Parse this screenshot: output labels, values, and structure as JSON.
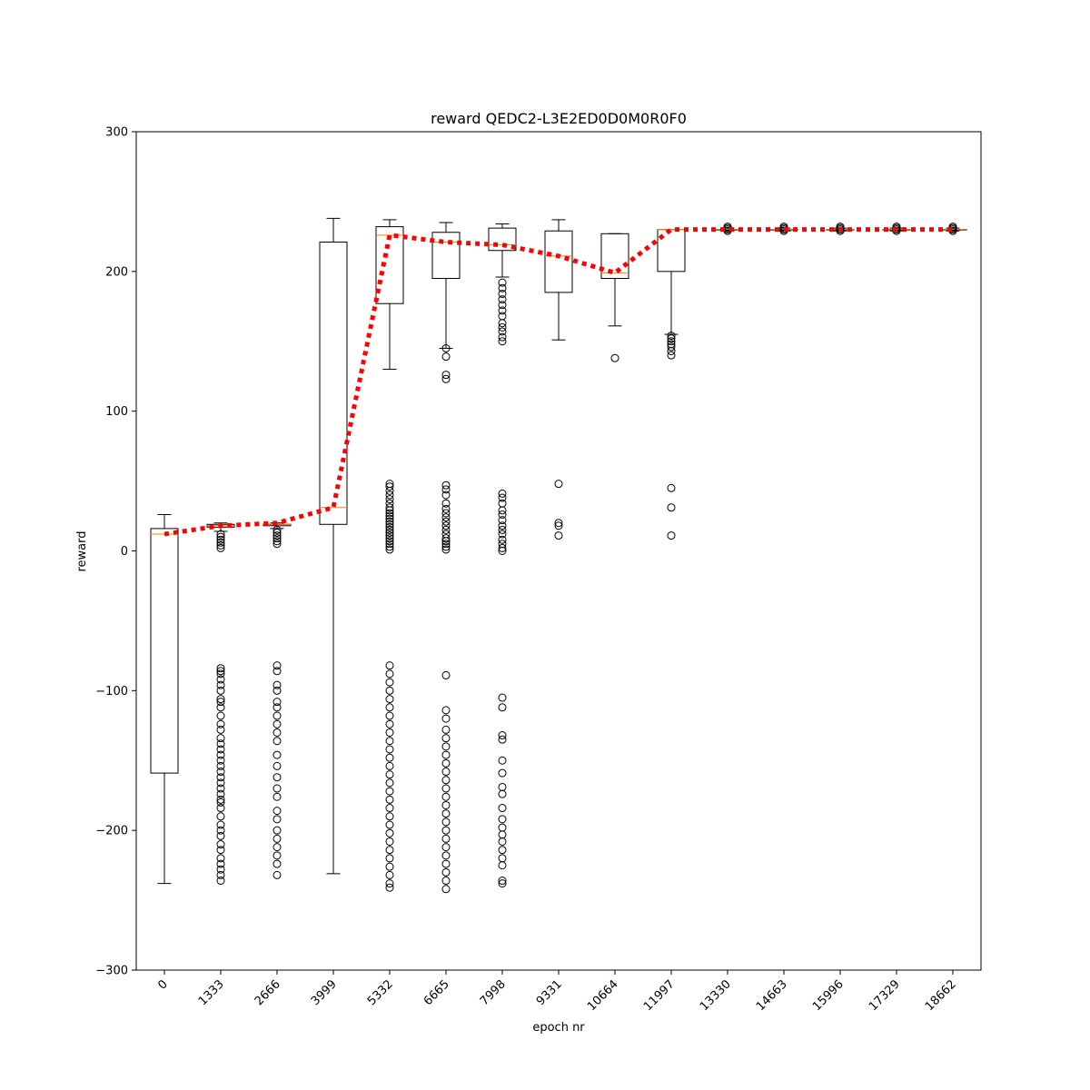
{
  "chart_data": {
    "type": "box",
    "title": "reward QEDC2-L3E2ED0D0M0R0F0",
    "xlabel": "epoch nr",
    "ylabel": "reward",
    "ylim": [
      -300,
      300
    ],
    "yticks": [
      -300,
      -200,
      -100,
      0,
      100,
      200,
      300
    ],
    "categories": [
      "0",
      "1333",
      "2666",
      "3999",
      "5332",
      "6665",
      "7998",
      "9331",
      "10664",
      "11997",
      "13330",
      "14663",
      "15996",
      "17329",
      "18662"
    ],
    "boxes": [
      {
        "whisker_low": -238,
        "q1": -159,
        "median": 12,
        "q3": 16,
        "whisker_high": 26,
        "outliers": []
      },
      {
        "whisker_low": 14,
        "q1": 17,
        "median": 18,
        "q3": 19,
        "whisker_high": 20,
        "outliers": [
          2,
          4,
          6,
          8,
          10,
          12,
          -84,
          -86,
          -88,
          -92,
          -96,
          -100,
          -106,
          -108,
          -112,
          -118,
          -124,
          -128,
          -134,
          -138,
          -142,
          -146,
          -150,
          -154,
          -158,
          -162,
          -166,
          -170,
          -174,
          -178,
          -180,
          -184,
          -190,
          -196,
          -200,
          -204,
          -210,
          -214,
          -220,
          -224,
          -228,
          -232,
          -236
        ]
      },
      {
        "whisker_low": 16,
        "q1": 18,
        "median": 19,
        "q3": 19,
        "whisker_high": 20,
        "outliers": [
          5,
          7,
          9,
          11,
          13,
          15,
          -82,
          -86,
          -96,
          -100,
          -108,
          -112,
          -118,
          -124,
          -130,
          -136,
          -146,
          -154,
          -162,
          -170,
          -176,
          -186,
          -192,
          -200,
          -206,
          -212,
          -218,
          -224,
          -232
        ]
      },
      {
        "whisker_low": -231,
        "q1": 19,
        "median": 31,
        "q3": 221,
        "whisker_high": 238,
        "outliers": []
      },
      {
        "whisker_low": 130,
        "q1": 177,
        "median": 226,
        "q3": 232,
        "whisker_high": 237,
        "outliers": [
          1,
          3,
          5,
          7,
          9,
          11,
          13,
          15,
          17,
          19,
          21,
          23,
          25,
          27,
          29,
          31,
          34,
          37,
          40,
          43,
          46,
          48,
          -82,
          -88,
          -94,
          -100,
          -106,
          -112,
          -118,
          -124,
          -130,
          -136,
          -142,
          -148,
          -154,
          -160,
          -166,
          -172,
          -178,
          -184,
          -190,
          -196,
          -202,
          -208,
          -214,
          -220,
          -226,
          -232,
          -238,
          -241
        ]
      },
      {
        "whisker_low": 145,
        "q1": 195,
        "median": 221,
        "q3": 228,
        "whisker_high": 235,
        "outliers": [
          139,
          145,
          126,
          123,
          1,
          3,
          5,
          7,
          9,
          12,
          15,
          18,
          21,
          24,
          27,
          30,
          34,
          40,
          44,
          47,
          -89,
          -114,
          -120,
          -128,
          -134,
          -140,
          -146,
          -152,
          -158,
          -164,
          -170,
          -176,
          -182,
          -188,
          -194,
          -200,
          -206,
          -212,
          -218,
          -224,
          -230,
          -236,
          -242
        ]
      },
      {
        "whisker_low": 196,
        "q1": 215,
        "median": 219,
        "q3": 231,
        "whisker_high": 234,
        "outliers": [
          150,
          153,
          157,
          160,
          163,
          168,
          172,
          176,
          180,
          184,
          188,
          192,
          0,
          2,
          5,
          8,
          12,
          15,
          18,
          22,
          26,
          29,
          34,
          38,
          41,
          -105,
          -112,
          -132,
          -135,
          -150,
          -159,
          -169,
          -174,
          -184,
          -192,
          -198,
          -203,
          -208,
          -214,
          -220,
          -225,
          -236,
          -238
        ]
      },
      {
        "whisker_low": 151,
        "q1": 185,
        "median": 211,
        "q3": 229,
        "whisker_high": 237,
        "outliers": [
          48,
          20,
          18,
          11
        ]
      },
      {
        "whisker_low": 161,
        "q1": 195,
        "median": 199,
        "q3": 227,
        "whisker_high": 227,
        "outliers": [
          138
        ]
      },
      {
        "whisker_low": 155,
        "q1": 200,
        "median": 230,
        "q3": 230,
        "whisker_high": 230,
        "outliers": [
          140,
          143,
          146,
          148,
          150,
          152,
          154,
          45,
          31,
          11
        ]
      },
      {
        "whisker_low": 229,
        "q1": 230,
        "median": 230,
        "q3": 230,
        "whisker_high": 231,
        "outliers": [
          229,
          230,
          231,
          232
        ]
      },
      {
        "whisker_low": 229,
        "q1": 230,
        "median": 230,
        "q3": 230,
        "whisker_high": 231,
        "outliers": [
          229,
          230,
          231,
          232
        ]
      },
      {
        "whisker_low": 229,
        "q1": 230,
        "median": 230,
        "q3": 230,
        "whisker_high": 231,
        "outliers": [
          229,
          230,
          231,
          232
        ]
      },
      {
        "whisker_low": 229,
        "q1": 230,
        "median": 230,
        "q3": 230,
        "whisker_high": 231,
        "outliers": [
          229,
          230,
          231,
          232
        ]
      },
      {
        "whisker_low": 229,
        "q1": 230,
        "median": 230,
        "q3": 230,
        "whisker_high": 231,
        "outliers": [
          229,
          230,
          231,
          232
        ]
      }
    ],
    "mean_line": {
      "values": [
        12,
        18,
        20,
        31,
        226,
        221,
        219,
        211,
        199,
        230,
        230,
        230,
        230,
        230,
        230
      ],
      "color": "#ff0000",
      "style": "dotted"
    },
    "median_color": "#ff7f0e",
    "box_color": "#000000",
    "grid": false,
    "legend": "none"
  }
}
